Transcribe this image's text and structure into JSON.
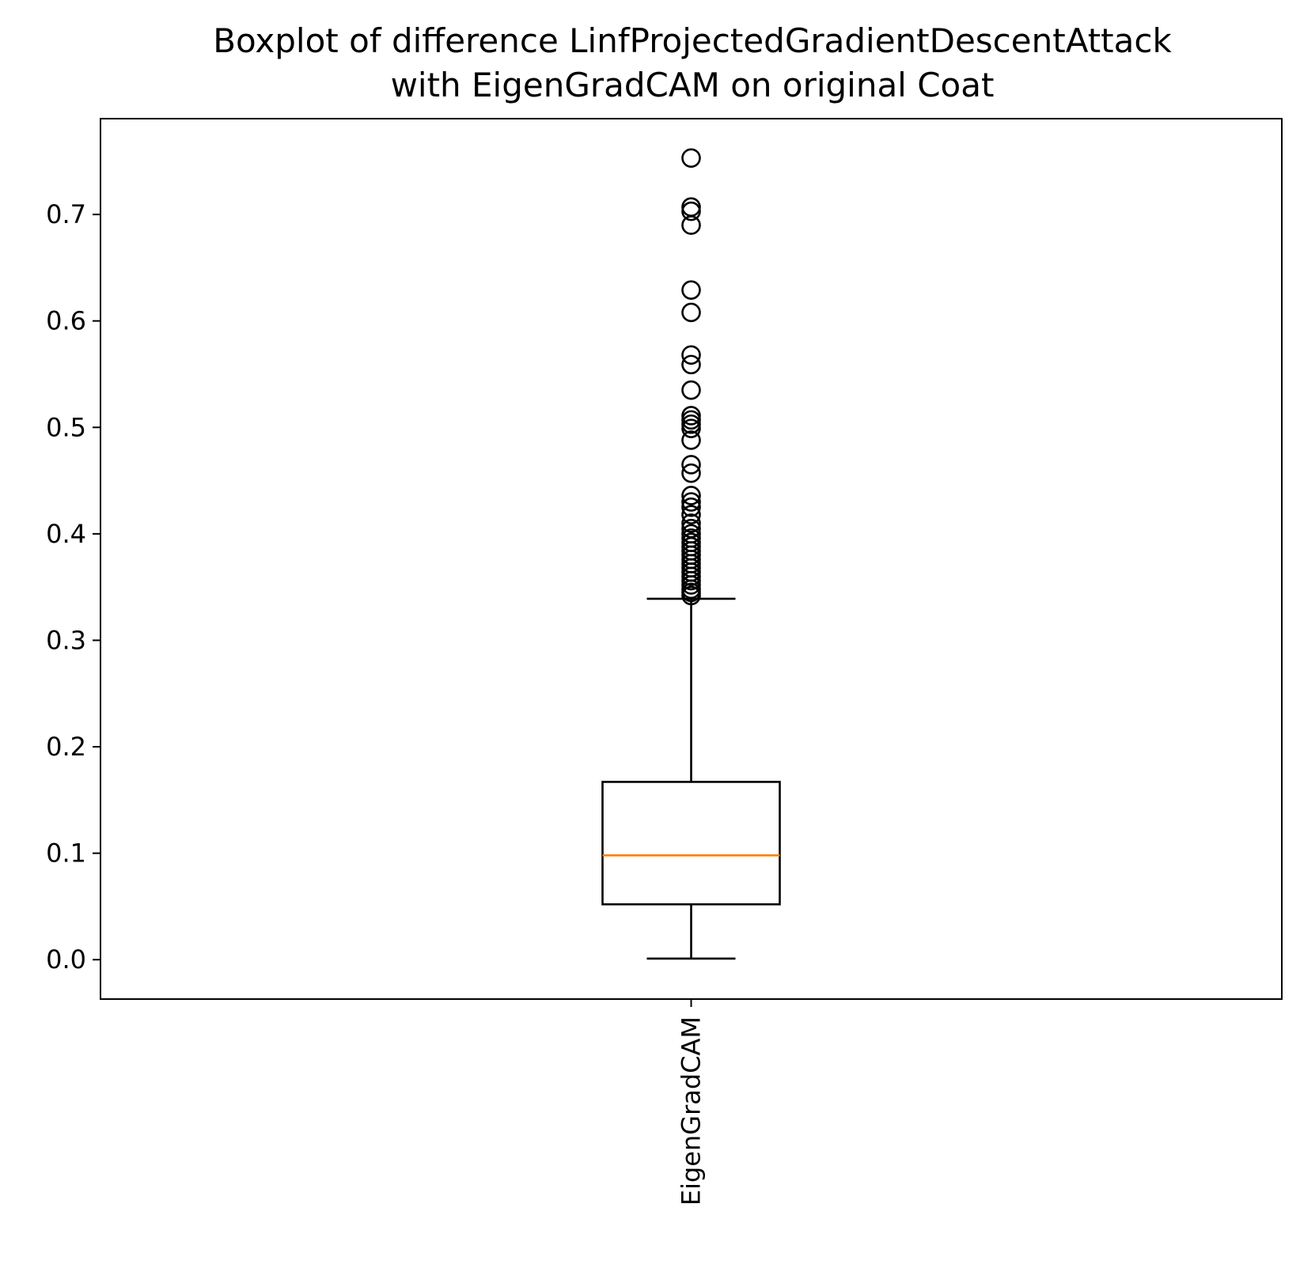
{
  "chart_data": {
    "type": "box",
    "title_lines": [
      "Boxplot of difference LinfProjectedGradientDescentAttack",
      "with EigenGradCAM on original Coat"
    ],
    "xlabel": "",
    "ylabel": "",
    "categories": [
      "EigenGradCAM"
    ],
    "ylim": [
      -0.037,
      0.79
    ],
    "yticks": [
      0.0,
      0.1,
      0.2,
      0.3,
      0.4,
      0.5,
      0.6,
      0.7
    ],
    "ytick_labels": [
      "0.0",
      "0.1",
      "0.2",
      "0.3",
      "0.4",
      "0.5",
      "0.6",
      "0.7"
    ],
    "grid": false,
    "boxes": [
      {
        "name": "EigenGradCAM",
        "whisker_low": 0.001,
        "q1": 0.052,
        "median": 0.098,
        "q3": 0.167,
        "whisker_high": 0.339,
        "outliers": [
          0.753,
          0.707,
          0.703,
          0.69,
          0.629,
          0.608,
          0.568,
          0.559,
          0.535,
          0.511,
          0.507,
          0.503,
          0.499,
          0.488,
          0.465,
          0.457,
          0.436,
          0.43,
          0.425,
          0.418,
          0.41,
          0.405,
          0.4,
          0.396,
          0.392,
          0.388,
          0.384,
          0.38,
          0.376,
          0.372,
          0.368,
          0.364,
          0.36,
          0.356,
          0.352,
          0.348,
          0.345,
          0.342
        ]
      }
    ],
    "colors": {
      "box": "#000000",
      "median": "#ff7f0e",
      "outlier_edge": "#000000"
    }
  }
}
